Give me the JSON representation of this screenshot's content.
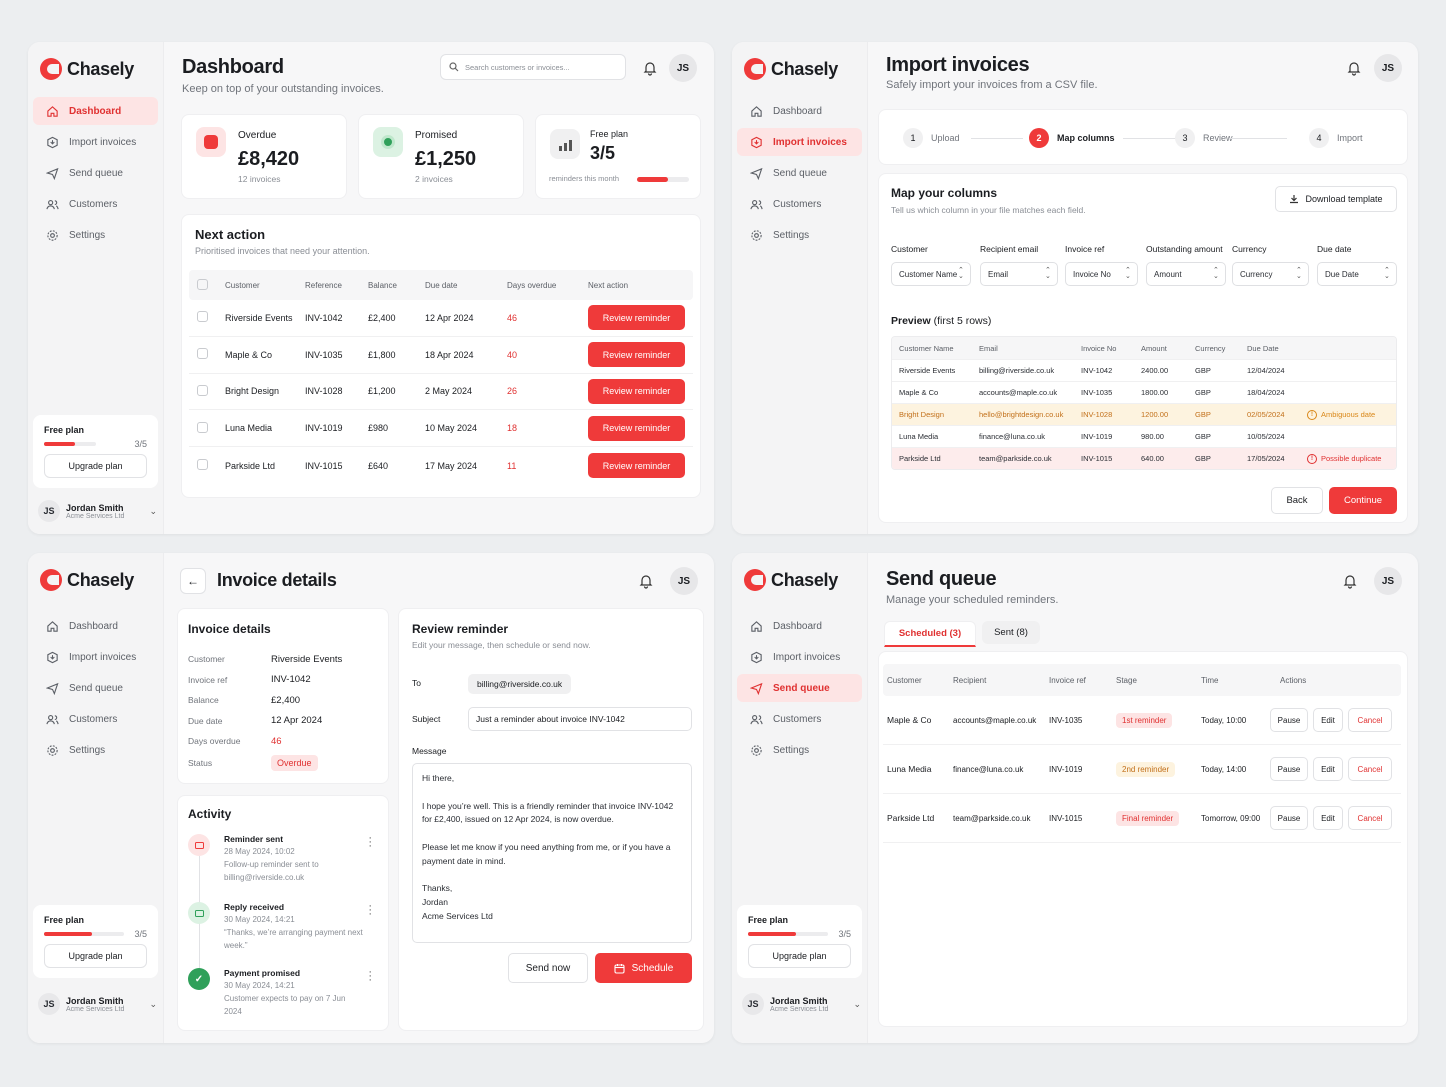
{
  "brand": {
    "name": "Chasely",
    "accent": "#ef3a3a"
  },
  "user": {
    "initials": "JS",
    "name": "Jordan Smith",
    "org": "Acme Services Ltd"
  },
  "plan": {
    "name": "Free plan",
    "used_label": "3/5",
    "fill": 0.6,
    "upgrade": "Upgrade plan"
  },
  "nav": [
    {
      "label": "Dashboard",
      "icon": "home-icon"
    },
    {
      "label": "Import invoices",
      "icon": "import-icon"
    },
    {
      "label": "Send queue",
      "icon": "send-icon"
    },
    {
      "label": "Customers",
      "icon": "users-icon"
    },
    {
      "label": "Settings",
      "icon": "gear-icon"
    }
  ],
  "dashboard": {
    "title": "Dashboard",
    "subtitle": "Keep on top of your outstanding invoices.",
    "search_placeholder": "Search customers or invoices...",
    "stats": {
      "overdue": {
        "label": "Overdue",
        "value": "£8,420",
        "sub": "12 invoices"
      },
      "promised": {
        "label": "Promised",
        "value": "£1,250",
        "sub": "2 invoices"
      },
      "plan": {
        "label": "Free plan",
        "value": "3/5",
        "sub": "reminders this month",
        "fill": 0.6
      }
    },
    "next_action": {
      "title": "Next action",
      "subtitle": "Prioritised invoices that need your attention.",
      "columns": [
        "Customer",
        "Reference",
        "Balance",
        "Due date",
        "Days overdue",
        "Next action"
      ],
      "button": "Review reminder",
      "rows": [
        {
          "customer": "Riverside Events",
          "ref": "INV-1042",
          "balance": "£2,400",
          "due": "12 Apr 2024",
          "days": "46"
        },
        {
          "customer": "Maple & Co",
          "ref": "INV-1035",
          "balance": "£1,800",
          "due": "18 Apr 2024",
          "days": "40"
        },
        {
          "customer": "Bright Design",
          "ref": "INV-1028",
          "balance": "£1,200",
          "due": "2 May 2024",
          "days": "26"
        },
        {
          "customer": "Luna Media",
          "ref": "INV-1019",
          "balance": "£980",
          "due": "10 May 2024",
          "days": "18"
        },
        {
          "customer": "Parkside Ltd",
          "ref": "INV-1015",
          "balance": "£640",
          "due": "17 May 2024",
          "days": "11"
        }
      ]
    }
  },
  "import": {
    "title": "Import invoices",
    "subtitle": "Safely import your invoices from a CSV file.",
    "steps": [
      {
        "num": "1",
        "label": "Upload"
      },
      {
        "num": "2",
        "label": "Map columns"
      },
      {
        "num": "3",
        "label": "Review"
      },
      {
        "num": "4",
        "label": "Import"
      }
    ],
    "map_title": "Map your columns",
    "map_sub": "Tell us which column in your file matches each field.",
    "download": "Download template",
    "fields": [
      {
        "label": "Customer",
        "value": "Customer Name"
      },
      {
        "label": "Recipient email",
        "value": "Email"
      },
      {
        "label": "Invoice ref",
        "value": "Invoice No"
      },
      {
        "label": "Outstanding amount",
        "value": "Amount"
      },
      {
        "label": "Currency",
        "value": "Currency"
      },
      {
        "label": "Due date",
        "value": "Due Date"
      }
    ],
    "preview_title": "Preview",
    "preview_note": "(first 5 rows)",
    "preview_columns": [
      "Customer Name",
      "Email",
      "Invoice No",
      "Amount",
      "Currency",
      "Due Date"
    ],
    "preview_rows": [
      {
        "c": "Riverside Events",
        "e": "billing@riverside.co.uk",
        "i": "INV-1042",
        "a": "2400.00",
        "cur": "GBP",
        "d": "12/04/2024",
        "flag": ""
      },
      {
        "c": "Maple & Co",
        "e": "accounts@maple.co.uk",
        "i": "INV-1035",
        "a": "1800.00",
        "cur": "GBP",
        "d": "18/04/2024",
        "flag": ""
      },
      {
        "c": "Bright Design",
        "e": "hello@brightdesign.co.uk",
        "i": "INV-1028",
        "a": "1200.00",
        "cur": "GBP",
        "d": "02/05/2024",
        "flag": "Ambiguous date"
      },
      {
        "c": "Luna Media",
        "e": "finance@luna.co.uk",
        "i": "INV-1019",
        "a": "980.00",
        "cur": "GBP",
        "d": "10/05/2024",
        "flag": ""
      },
      {
        "c": "Parkside Ltd",
        "e": "team@parkside.co.uk",
        "i": "INV-1015",
        "a": "640.00",
        "cur": "GBP",
        "d": "17/05/2024",
        "flag": "Possible duplicate"
      }
    ],
    "back": "Back",
    "continue": "Continue"
  },
  "invoice": {
    "title": "Invoice details",
    "details_title": "Invoice details",
    "fields": [
      {
        "label": "Customer",
        "value": "Riverside Events"
      },
      {
        "label": "Invoice ref",
        "value": "INV-1042"
      },
      {
        "label": "Balance",
        "value": "£2,400"
      },
      {
        "label": "Due date",
        "value": "12 Apr 2024"
      },
      {
        "label": "Days overdue",
        "value": "46"
      },
      {
        "label": "Status",
        "value": "Overdue"
      }
    ],
    "activity_title": "Activity",
    "activity": [
      {
        "title": "Reminder sent",
        "time": "28 May 2024, 10:02",
        "desc": "Follow-up reminder sent to billing@riverside.co.uk"
      },
      {
        "title": "Reply received",
        "time": "30 May 2024, 14:21",
        "desc": "“Thanks, we’re arranging payment next week.”"
      },
      {
        "title": "Payment promised",
        "time": "30 May 2024, 14:21",
        "desc": "Customer expects to pay on 7 Jun 2024"
      }
    ],
    "review": {
      "title": "Review reminder",
      "subtitle": "Edit your message, then schedule or send now.",
      "to_label": "To",
      "to": "billing@riverside.co.uk",
      "subject_label": "Subject",
      "subject": "Just a reminder about invoice INV-1042",
      "message_label": "Message",
      "message": "Hi there,\n\nI hope you’re well. This is a friendly reminder that invoice INV-1042 for £2,400, issued on 12 Apr 2024, is now overdue.\n\nPlease let me know if you need anything from me, or if you have a payment date in mind.\n\nThanks,\nJordan\nAcme Services Ltd",
      "send_now": "Send now",
      "schedule": "Schedule"
    }
  },
  "queue": {
    "title": "Send queue",
    "subtitle": "Manage your scheduled reminders.",
    "tabs": [
      "Scheduled (3)",
      "Sent (8)"
    ],
    "columns": [
      "Customer",
      "Recipient",
      "Invoice ref",
      "Stage",
      "Time",
      "Actions"
    ],
    "actions": [
      "Pause",
      "Edit",
      "Cancel"
    ],
    "rows": [
      {
        "customer": "Maple & Co",
        "recipient": "accounts@maple.co.uk",
        "ref": "INV-1035",
        "stage": "1st reminder",
        "time": "Today, 10:00"
      },
      {
        "customer": "Luna Media",
        "recipient": "finance@luna.co.uk",
        "ref": "INV-1019",
        "stage": "2nd reminder",
        "time": "Today, 14:00"
      },
      {
        "customer": "Parkside Ltd",
        "recipient": "team@parkside.co.uk",
        "ref": "INV-1015",
        "stage": "Final reminder",
        "time": "Tomorrow, 09:00"
      }
    ]
  }
}
